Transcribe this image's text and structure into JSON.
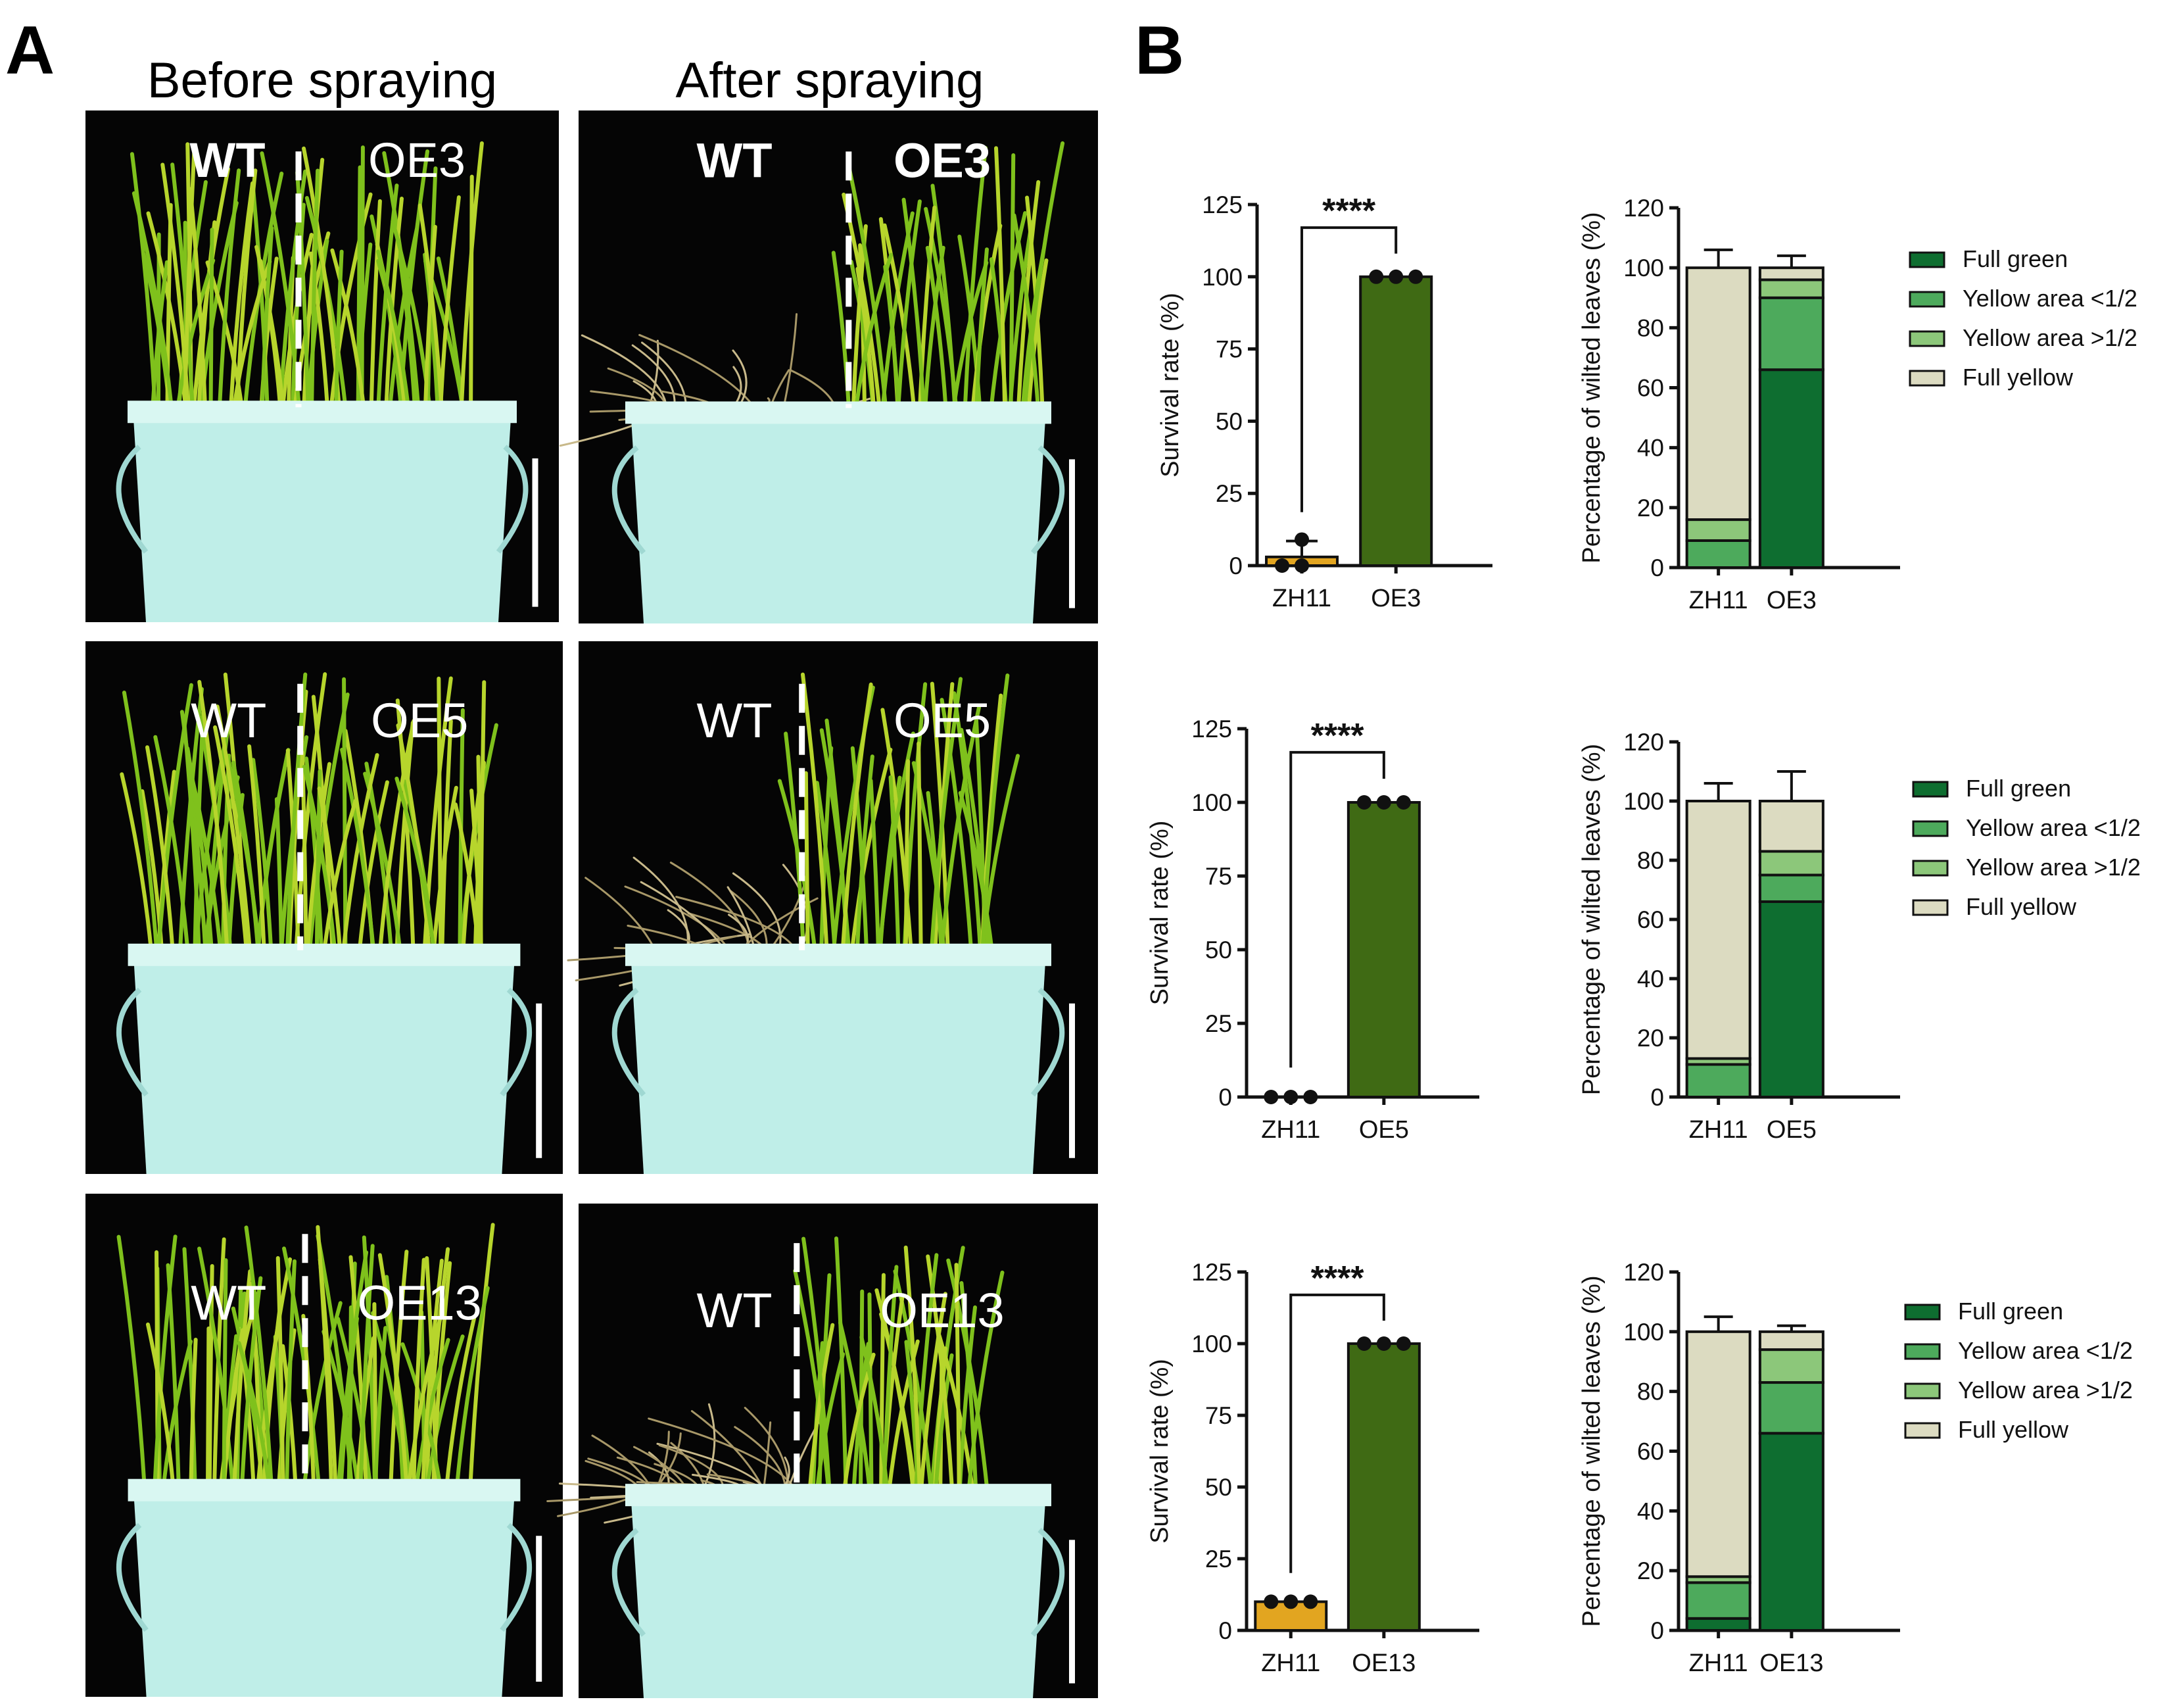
{
  "panel_labels": {
    "a": "A",
    "b": "B"
  },
  "photos": {
    "column_titles": [
      "Before spraying",
      "After spraying"
    ],
    "rows": [
      {
        "before": {
          "left": "WT",
          "right": "OE3"
        },
        "after": {
          "left": "WT",
          "right": "OE3"
        }
      },
      {
        "before": {
          "left": "WT",
          "right": "OE5"
        },
        "after": {
          "left": "WT",
          "right": "OE5"
        }
      },
      {
        "before": {
          "left": "WT",
          "right": "OE13"
        },
        "after": {
          "left": "WT",
          "right": "OE13"
        }
      }
    ]
  },
  "colors": {
    "zh11_bar": "#E2A520",
    "oe_bar": "#3F6A14",
    "full_green": "#0E6E30",
    "yellow_lt_half": "#4DAA5C",
    "yellow_gt_half": "#8CC77A",
    "full_yellow": "#DCDBC1"
  },
  "chart_data": [
    {
      "type": "bar",
      "panel": "B-row1-left",
      "categories": [
        "ZH11",
        "OE3"
      ],
      "values": [
        3,
        100
      ],
      "points": [
        [
          0,
          0,
          9
        ],
        [
          100,
          100,
          100
        ]
      ],
      "error": [
        5.5,
        0
      ],
      "ylabel": "Survival rate (%)",
      "ylim": [
        0,
        125
      ],
      "yticks": [
        0,
        25,
        50,
        75,
        100,
        125
      ],
      "significance": "****"
    },
    {
      "type": "bar",
      "stacked": true,
      "panel": "B-row1-right",
      "categories": [
        "ZH11",
        "OE3"
      ],
      "ylabel": "Percentage of wilted leaves (%)",
      "ylim": [
        0,
        120
      ],
      "yticks": [
        0,
        20,
        40,
        60,
        80,
        100,
        120
      ],
      "series": [
        {
          "name": "Full green",
          "values": [
            0,
            66
          ],
          "error": [
            0,
            0
          ]
        },
        {
          "name": "Yellow area <1/2",
          "values": [
            9,
            24
          ],
          "error": [
            5,
            0
          ]
        },
        {
          "name": "Yellow area >1/2",
          "values": [
            7,
            6
          ],
          "error": [
            6,
            3
          ]
        },
        {
          "name": "Full yellow",
          "values": [
            84,
            4
          ],
          "error": [
            6,
            4
          ]
        }
      ]
    },
    {
      "type": "bar",
      "panel": "B-row2-left",
      "categories": [
        "ZH11",
        "OE5"
      ],
      "values": [
        0,
        100
      ],
      "points": [
        [
          0,
          0,
          0
        ],
        [
          100,
          100,
          100
        ]
      ],
      "error": [
        0,
        0
      ],
      "ylabel": "Survival rate (%)",
      "ylim": [
        0,
        125
      ],
      "yticks": [
        0,
        25,
        50,
        75,
        100,
        125
      ],
      "significance": "****"
    },
    {
      "type": "bar",
      "stacked": true,
      "panel": "B-row2-right",
      "categories": [
        "ZH11",
        "OE5"
      ],
      "ylabel": "Percentage of wilted leaves (%)",
      "ylim": [
        0,
        120
      ],
      "yticks": [
        0,
        20,
        40,
        60,
        80,
        100,
        120
      ],
      "series": [
        {
          "name": "Full green",
          "values": [
            0,
            66
          ],
          "error": [
            0,
            0
          ]
        },
        {
          "name": "Yellow area <1/2",
          "values": [
            11,
            9
          ],
          "error": [
            4,
            2
          ]
        },
        {
          "name": "Yellow area >1/2",
          "values": [
            2,
            8
          ],
          "error": [
            4,
            9
          ]
        },
        {
          "name": "Full yellow",
          "values": [
            87,
            17
          ],
          "error": [
            6,
            10
          ]
        }
      ]
    },
    {
      "type": "bar",
      "panel": "B-row3-left",
      "categories": [
        "ZH11",
        "OE13"
      ],
      "values": [
        10,
        100
      ],
      "points": [
        [
          10,
          10,
          10
        ],
        [
          100,
          100,
          100
        ]
      ],
      "error": [
        0,
        0
      ],
      "ylabel": "Survival rate (%)",
      "ylim": [
        0,
        125
      ],
      "yticks": [
        0,
        25,
        50,
        75,
        100,
        125
      ],
      "significance": "****"
    },
    {
      "type": "bar",
      "stacked": true,
      "panel": "B-row3-right",
      "categories": [
        "ZH11",
        "OE13"
      ],
      "ylabel": "Percentage of wilted leaves (%)",
      "ylim": [
        0,
        120
      ],
      "yticks": [
        0,
        20,
        40,
        60,
        80,
        100,
        120
      ],
      "series": [
        {
          "name": "Full green",
          "values": [
            4,
            66
          ],
          "error": [
            0,
            0
          ]
        },
        {
          "name": "Yellow area <1/2",
          "values": [
            12,
            17
          ],
          "error": [
            7,
            4
          ]
        },
        {
          "name": "Yellow area >1/2",
          "values": [
            2,
            11
          ],
          "error": [
            5,
            3
          ]
        },
        {
          "name": "Full yellow",
          "values": [
            82,
            6
          ],
          "error": [
            5,
            2
          ]
        }
      ]
    }
  ]
}
